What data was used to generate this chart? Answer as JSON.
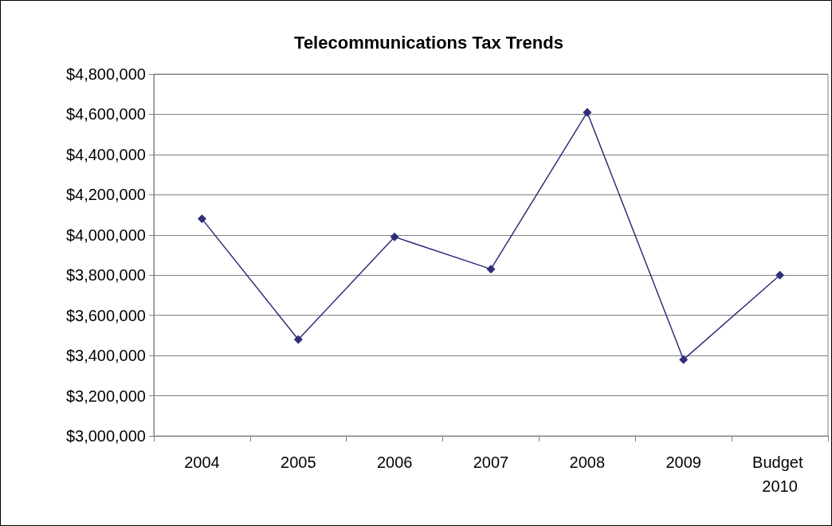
{
  "chart_data": {
    "type": "line",
    "title": "Telecommunications Tax Trends",
    "categories": [
      "2004",
      "2005",
      "2006",
      "2007",
      "2008",
      "2009",
      "Budget 2010"
    ],
    "series": [
      {
        "color": "#2e2e7a",
        "values": [
          4080000,
          3480000,
          3990000,
          3830000,
          4610000,
          3380000,
          3800000
        ]
      }
    ],
    "ylim": [
      3000000,
      4800000
    ],
    "yticks": [
      {
        "value": 3000000,
        "label": "$3,000,000"
      },
      {
        "value": 3200000,
        "label": "$3,200,000"
      },
      {
        "value": 3400000,
        "label": "$3,400,000"
      },
      {
        "value": 3600000,
        "label": "$3,600,000"
      },
      {
        "value": 3800000,
        "label": "$3,800,000"
      },
      {
        "value": 4000000,
        "label": "$4,000,000"
      },
      {
        "value": 4200000,
        "label": "$4,200,000"
      },
      {
        "value": 4400000,
        "label": "$4,400,000"
      },
      {
        "value": 4600000,
        "label": "$4,600,000"
      },
      {
        "value": 4800000,
        "label": "$4,800,000"
      }
    ],
    "grid": "y",
    "marker": "diamond",
    "line_style": "solid"
  }
}
